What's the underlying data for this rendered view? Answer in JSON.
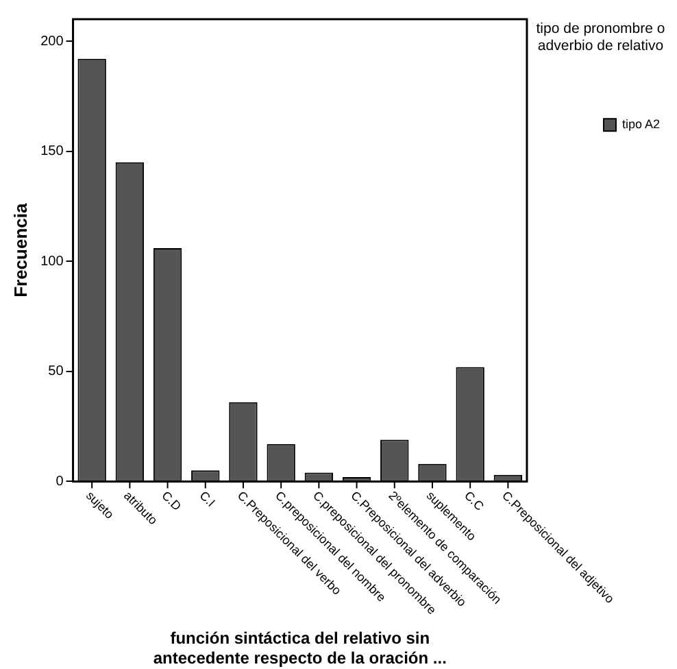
{
  "chart_data": {
    "type": "bar",
    "xlabel": "función sintáctica del relativo sin antecedente respecto de la oración ...",
    "ylabel": "Frecuencia",
    "legend_title": "tipo de pronombre o adverbio de relativo",
    "categories": [
      "sujeto",
      "atributo",
      "C.D",
      "C.I",
      "C.Preposicional del verbo",
      "C.preposicional del nombre",
      "C.preposicional del pronombre",
      "C.Preposicional del adverbio",
      "2ºelemento de comparación",
      "suplemento",
      "C.C",
      "C.Preposicional del adjetivo"
    ],
    "series": [
      {
        "name": "tipo A2",
        "color": "#555555",
        "values": [
          192,
          145,
          106,
          5,
          36,
          17,
          4,
          2,
          19,
          8,
          52,
          3
        ]
      }
    ],
    "ylim": [
      0,
      210
    ],
    "yticks": [
      0,
      50,
      100,
      150,
      200
    ],
    "grid": false,
    "legend": "top right"
  }
}
